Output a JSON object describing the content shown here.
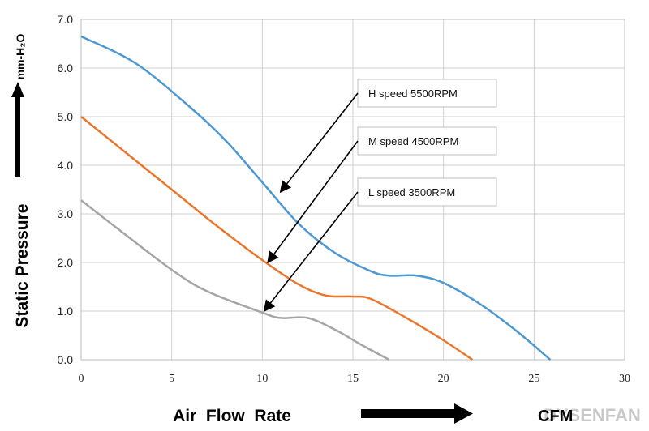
{
  "chart_data": {
    "type": "line",
    "xlabel": "Air  Flow  Rate",
    "xunit": "CFM",
    "ylabel": "Static  Pressure",
    "yunit": "mm-H₂O",
    "xlim": [
      0,
      30
    ],
    "ylim": [
      0,
      7
    ],
    "xticks": [
      "0",
      "5",
      "10",
      "15",
      "20",
      "25",
      "30"
    ],
    "yticks": [
      "0.0",
      "1.0",
      "2.0",
      "3.0",
      "4.0",
      "5.0",
      "6.0",
      "7.0"
    ],
    "grid": true,
    "watermark": "DYSENFAN",
    "series": [
      {
        "name": "H  speed  5500RPM",
        "color": "#4f97cf",
        "x": [
          0,
          3,
          6,
          8,
          10,
          12,
          14,
          16,
          17,
          18.5,
          20,
          22,
          24,
          25.9
        ],
        "y": [
          6.65,
          6.1,
          5.2,
          4.5,
          3.65,
          2.8,
          2.2,
          1.82,
          1.73,
          1.73,
          1.58,
          1.15,
          0.6,
          0
        ]
      },
      {
        "name": "M  speed  4500RPM",
        "color": "#e8772e",
        "x": [
          0,
          2.5,
          5,
          7.5,
          10,
          12,
          13.5,
          15,
          16,
          18,
          20,
          21.6
        ],
        "y": [
          5.0,
          4.25,
          3.5,
          2.75,
          2.05,
          1.55,
          1.32,
          1.3,
          1.25,
          0.85,
          0.4,
          0
        ]
      },
      {
        "name": "L  speed  3500RPM",
        "color": "#a5a5a5",
        "x": [
          0,
          2,
          5,
          7,
          10,
          11,
          12.5,
          14,
          15.5,
          17
        ],
        "y": [
          3.28,
          2.7,
          1.85,
          1.4,
          0.97,
          0.86,
          0.86,
          0.62,
          0.3,
          0
        ]
      }
    ],
    "annotations": [
      {
        "text": "H  speed  5500RPM",
        "target": [
          11,
          3.45
        ]
      },
      {
        "text": "M  speed  4500RPM",
        "target": [
          10.3,
          2.0
        ]
      },
      {
        "text": "L  speed  3500RPM",
        "target": [
          10.1,
          1.0
        ]
      }
    ]
  }
}
